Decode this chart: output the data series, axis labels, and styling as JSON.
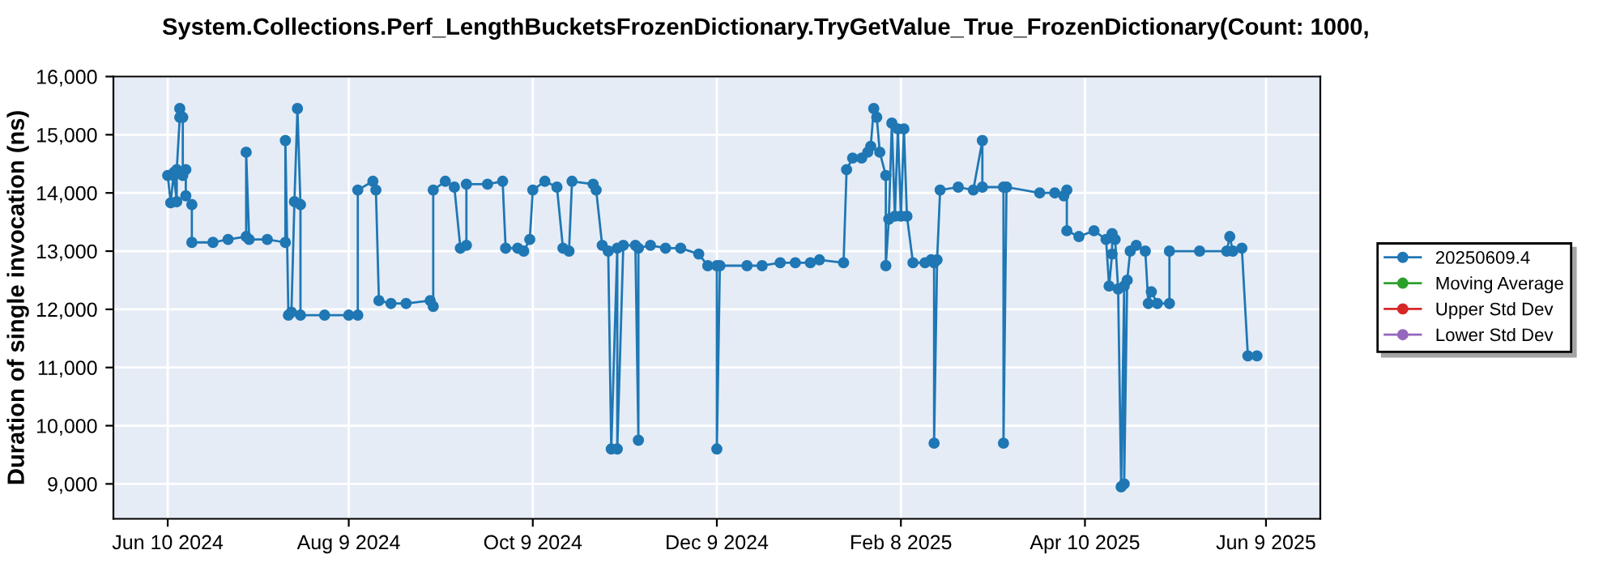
{
  "chart_data": {
    "type": "line",
    "title": "System.Collections.Perf_LengthBucketsFrozenDictionary.TryGetValue_True_FrozenDictionary(Count: 1000,",
    "ylabel": "Duration of single invocation (ns)",
    "xlim": [
      "2024-05-23",
      "2025-06-27"
    ],
    "xticks": [
      {
        "value": "2024-06-10",
        "label": "Jun 10 2024"
      },
      {
        "value": "2024-08-09",
        "label": "Aug 9 2024"
      },
      {
        "value": "2024-10-09",
        "label": "Oct 9 2024"
      },
      {
        "value": "2024-12-09",
        "label": "Dec 9 2024"
      },
      {
        "value": "2025-02-08",
        "label": "Feb 8 2025"
      },
      {
        "value": "2025-04-10",
        "label": "Apr 10 2025"
      },
      {
        "value": "2025-06-09",
        "label": "Jun 9 2025"
      }
    ],
    "ylim": [
      8400,
      16000
    ],
    "yticks": [
      {
        "value": 9000,
        "label": "9,000"
      },
      {
        "value": 10000,
        "label": "10,000"
      },
      {
        "value": 11000,
        "label": "11,000"
      },
      {
        "value": 12000,
        "label": "12,000"
      },
      {
        "value": 13000,
        "label": "13,000"
      },
      {
        "value": 14000,
        "label": "14,000"
      },
      {
        "value": 15000,
        "label": "15,000"
      },
      {
        "value": 16000,
        "label": "16,000"
      }
    ],
    "grid": true,
    "legend": "right",
    "marker": "circle",
    "line_style": "solid",
    "series": [
      {
        "name": "20250609.4",
        "color": "#1f77b4",
        "x": [
          "2024-06-10",
          "2024-06-11",
          "2024-06-12",
          "2024-06-12",
          "2024-06-13",
          "2024-06-13",
          "2024-06-14",
          "2024-06-14",
          "2024-06-15",
          "2024-06-15",
          "2024-06-16",
          "2024-06-16",
          "2024-06-18",
          "2024-06-18",
          "2024-06-25",
          "2024-06-30",
          "2024-07-06",
          "2024-07-06",
          "2024-07-07",
          "2024-07-13",
          "2024-07-19",
          "2024-07-19",
          "2024-07-20",
          "2024-07-21",
          "2024-07-22",
          "2024-07-23",
          "2024-07-24",
          "2024-07-24",
          "2024-08-01",
          "2024-08-09",
          "2024-08-12",
          "2024-08-12",
          "2024-08-17",
          "2024-08-18",
          "2024-08-19",
          "2024-08-23",
          "2024-08-28",
          "2024-09-05",
          "2024-09-06",
          "2024-09-06",
          "2024-09-10",
          "2024-09-13",
          "2024-09-15",
          "2024-09-17",
          "2024-09-17",
          "2024-09-24",
          "2024-09-29",
          "2024-09-30",
          "2024-10-04",
          "2024-10-06",
          "2024-10-08",
          "2024-10-09",
          "2024-10-13",
          "2024-10-17",
          "2024-10-19",
          "2024-10-21",
          "2024-10-22",
          "2024-10-29",
          "2024-10-30",
          "2024-11-01",
          "2024-11-03",
          "2024-11-04",
          "2024-11-06",
          "2024-11-06",
          "2024-11-08",
          "2024-11-12",
          "2024-11-13",
          "2024-11-13",
          "2024-11-17",
          "2024-11-22",
          "2024-11-27",
          "2024-12-03",
          "2024-12-06",
          "2024-12-09",
          "2024-12-09",
          "2024-12-10",
          "2024-12-19",
          "2024-12-24",
          "2024-12-30",
          "2025-01-04",
          "2025-01-09",
          "2025-01-12",
          "2025-01-20",
          "2025-01-21",
          "2025-01-23",
          "2025-01-26",
          "2025-01-28",
          "2025-01-29",
          "2025-01-30",
          "2025-01-31",
          "2025-02-01",
          "2025-02-03",
          "2025-02-03",
          "2025-02-04",
          "2025-02-05",
          "2025-02-06",
          "2025-02-07",
          "2025-02-08",
          "2025-02-09",
          "2025-02-10",
          "2025-02-12",
          "2025-02-16",
          "2025-02-18",
          "2025-02-19",
          "2025-02-19",
          "2025-02-20",
          "2025-02-21",
          "2025-02-27",
          "2025-03-04",
          "2025-03-07",
          "2025-03-07",
          "2025-03-14",
          "2025-03-14",
          "2025-03-15",
          "2025-03-26",
          "2025-03-31",
          "2025-04-03",
          "2025-04-04",
          "2025-04-04",
          "2025-04-08",
          "2025-04-13",
          "2025-04-17",
          "2025-04-18",
          "2025-04-19",
          "2025-04-19",
          "2025-04-20",
          "2025-04-21",
          "2025-04-22",
          "2025-04-23",
          "2025-04-23",
          "2025-04-24",
          "2025-04-25",
          "2025-04-27",
          "2025-04-30",
          "2025-05-01",
          "2025-05-02",
          "2025-05-04",
          "2025-05-08",
          "2025-05-08",
          "2025-05-18",
          "2025-05-27",
          "2025-05-28",
          "2025-05-29",
          "2025-06-01",
          "2025-06-03",
          "2025-06-06"
        ],
        "values": [
          14300,
          13830,
          14350,
          14300,
          13850,
          14400,
          15300,
          15450,
          15300,
          14300,
          14400,
          13950,
          13800,
          13150,
          13150,
          13200,
          13250,
          14700,
          13200,
          13200,
          13150,
          14900,
          11900,
          11950,
          13850,
          15450,
          13800,
          11900,
          11900,
          11900,
          11900,
          14050,
          14200,
          14050,
          12150,
          12100,
          12100,
          12150,
          12050,
          14050,
          14200,
          14100,
          13050,
          13100,
          14150,
          14150,
          14200,
          13050,
          13050,
          13000,
          13200,
          14050,
          14200,
          14100,
          13050,
          13000,
          14200,
          14150,
          14050,
          13100,
          13000,
          9600,
          13050,
          9600,
          13100,
          13100,
          9750,
          13050,
          13100,
          13050,
          13050,
          12950,
          12750,
          12750,
          9600,
          12750,
          12750,
          12750,
          12800,
          12800,
          12800,
          12850,
          12800,
          14400,
          14600,
          14600,
          14700,
          14800,
          15450,
          15300,
          14700,
          14300,
          12750,
          13550,
          15200,
          13600,
          15100,
          13600,
          15100,
          13600,
          12800,
          12800,
          12850,
          12800,
          9700,
          12850,
          14050,
          14100,
          14050,
          14900,
          14100,
          14100,
          9700,
          14100,
          14000,
          14000,
          13950,
          14050,
          13350,
          13250,
          13350,
          13200,
          12400,
          12950,
          13300,
          13200,
          12350,
          8950,
          12400,
          9000,
          12500,
          13000,
          13100,
          13000,
          12100,
          12300,
          12100,
          12100,
          13000,
          13000,
          13000,
          13250,
          13000,
          13050,
          11200,
          11200
        ]
      },
      {
        "name": "Moving Average",
        "color": "#2ca02c"
      },
      {
        "name": "Upper Std Dev",
        "color": "#d62728"
      },
      {
        "name": "Lower Std Dev",
        "color": "#9467bd"
      }
    ]
  }
}
